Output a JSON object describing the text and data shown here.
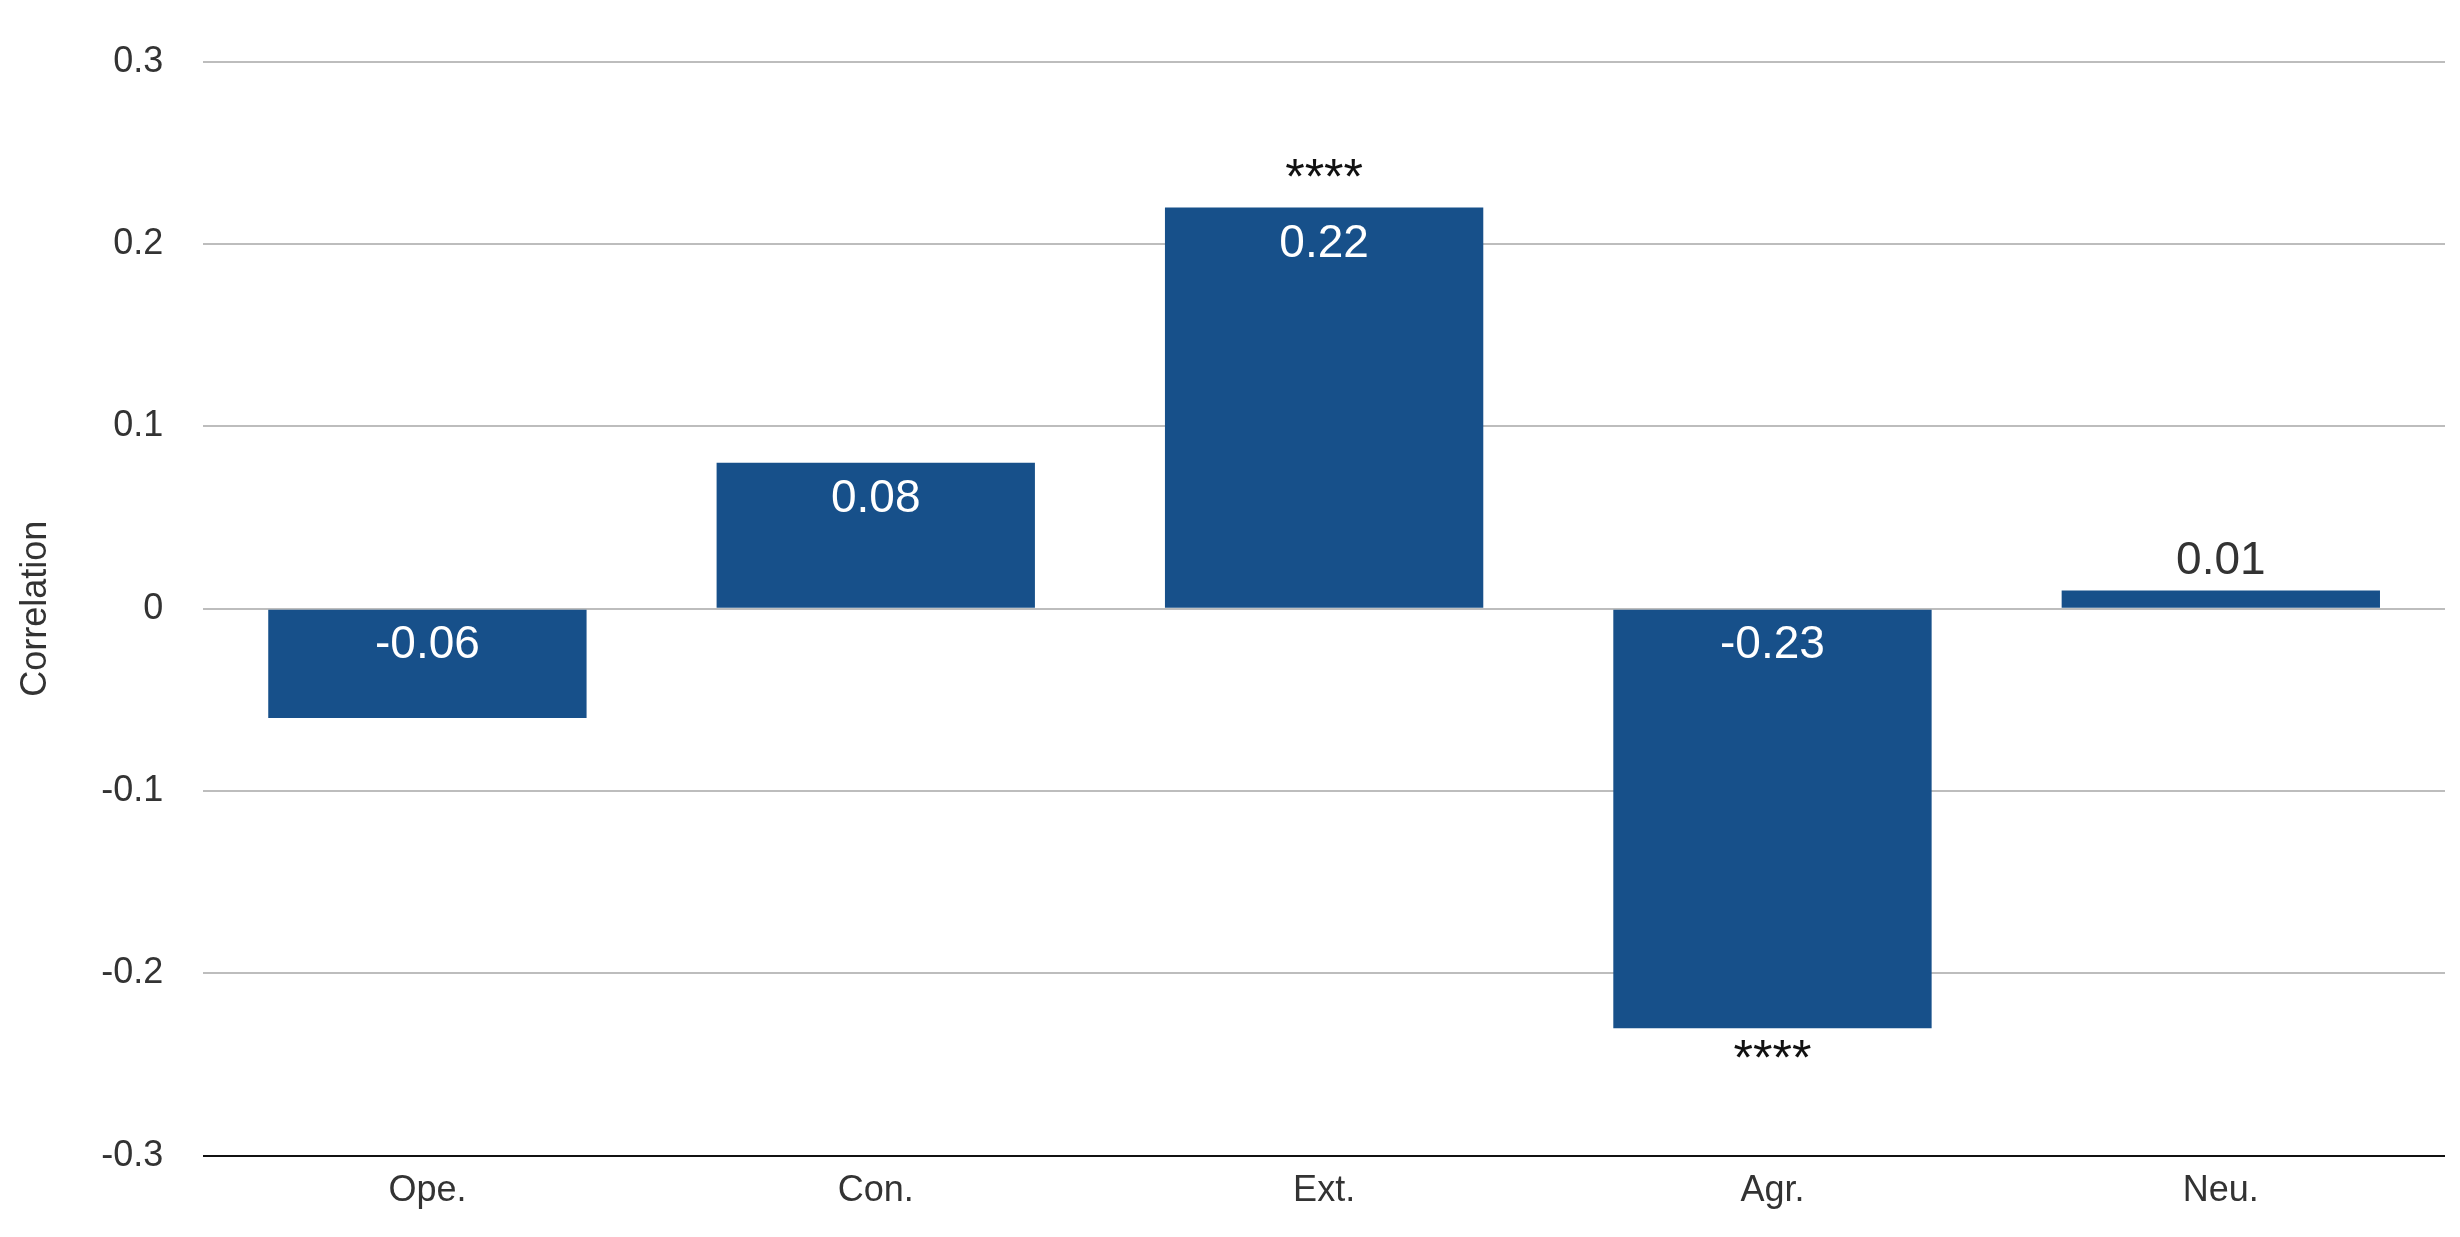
{
  "chart_data": {
    "type": "bar",
    "ylabel": "Correlation",
    "categories": [
      "Ope.",
      "Con.",
      "Ext.",
      "Agr.",
      "Neu."
    ],
    "values": [
      -0.06,
      0.08,
      0.22,
      -0.23,
      0.01
    ],
    "color": "#17508a",
    "ylim": [
      -0.3,
      0.3
    ],
    "yticks": [
      -0.3,
      -0.2,
      -0.1,
      0,
      0.1,
      0.2,
      0.3
    ],
    "grid": "y",
    "data_labels": true,
    "legend": false,
    "annotations": [
      {
        "text": "****",
        "x": "Ext.",
        "y": 0.22
      },
      {
        "text": "****",
        "x": "Agr.",
        "y": -0.23
      }
    ]
  }
}
